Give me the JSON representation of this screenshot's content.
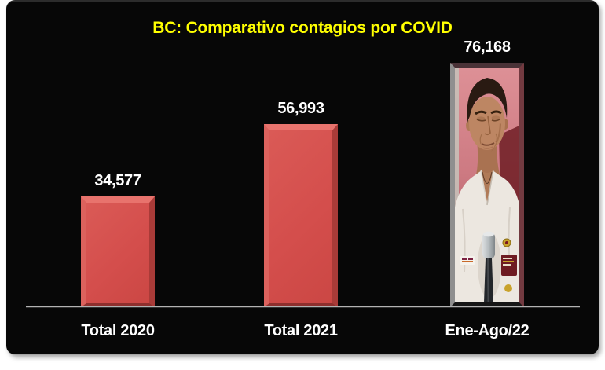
{
  "page": {
    "background_color": "#ffffff",
    "panel_background_color": "#070707"
  },
  "chart_data": {
    "type": "bar",
    "title": "BC: Comparativo contagios por COVID",
    "title_color": "#ffff00",
    "categories": [
      "Total 2020",
      "Total 2021",
      "Ene-Ago/22"
    ],
    "values": [
      34577,
      56993,
      76168
    ],
    "value_labels": [
      "34,577",
      "56,993",
      "76,168"
    ],
    "ylim": [
      0,
      76168
    ],
    "xlabel": "",
    "ylabel": "",
    "grid": false,
    "legend": false,
    "bar_color": "#d4504e",
    "bar_bevel_highlight": "#e8736d",
    "bar_bevel_shadow": "#8e2f2d",
    "data_label_color": "#ffffff",
    "axis_line_color": "#b2b2b2",
    "third_bar_fill": "photo of a man with dark hair in a white shirt speaking at a microphone against a pink background"
  }
}
